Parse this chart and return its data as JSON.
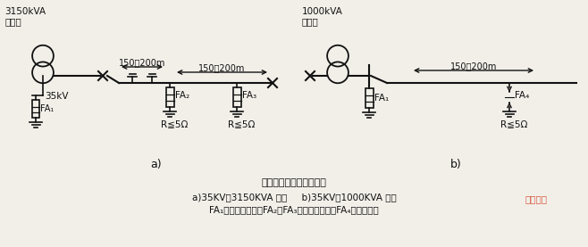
{
  "bg_color": "#f2efe9",
  "title": "简化的进出线段保护方式",
  "caption1": "a)35KV，3150KVA 以下     b)35KV，1000KVA 以下",
  "caption2": "FA₁－屏型避雷器；FA₂、FA₃－管型避雷器；FA₄－保护间隙",
  "label_a": "a)",
  "label_b": "b)",
  "label_3150": "3150kVA\n及以下",
  "label_1000": "1000kVA\n及以下",
  "label_35kv": "35kV",
  "label_150_200_1": "150～200m",
  "label_150_200_2": "150～200m",
  "label_150_200_3": "150～200m",
  "label_fa1_a": "FA₁",
  "label_fa2": "FA₂",
  "label_fa3": "FA₃",
  "label_fa1_b": "FA₁",
  "label_fa4": "FA₄",
  "label_r1": "R≦5Ω",
  "label_r2": "R≦5Ω",
  "label_r3": "R≦5Ω",
  "line_color": "#111111",
  "text_color": "#111111",
  "watermark": "电工天下",
  "watermark_color": "#cc2200"
}
